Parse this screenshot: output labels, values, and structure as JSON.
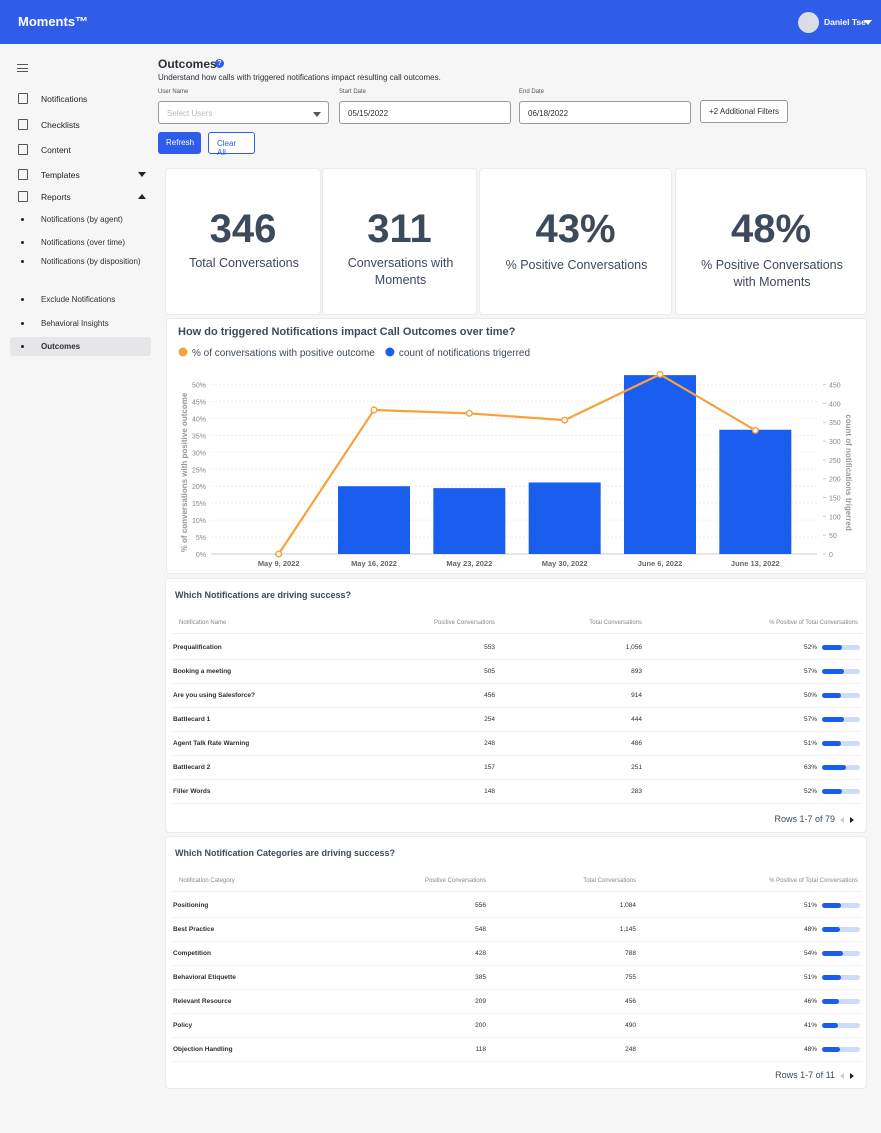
{
  "header": {
    "logo": "Moments™",
    "user": "Daniel Tse"
  },
  "sidebar": {
    "items": [
      "Notifications",
      "Checklists",
      "Content",
      "Templates",
      "Reports"
    ],
    "sub_items": [
      "Notifications (by agent)",
      "Notifications (over time)",
      "Notifications (by disposition)",
      "Exclude Notifications",
      "Behavioral Insights",
      "Outcomes"
    ]
  },
  "page": {
    "title": "Outcomes",
    "subtitle": "Understand how calls with triggered notifications impact resulting call outcomes."
  },
  "filters": {
    "user_label": "User Name",
    "user_placeholder": "Select Users",
    "start_label": "Start Date",
    "start_value": "05/15/2022",
    "end_label": "End Date",
    "end_value": "06/18/2022",
    "more": "+2 Additional Filters",
    "refresh": "Refresh",
    "clear": "Clear All"
  },
  "stats": [
    {
      "value": "346",
      "label": "Total Conversations"
    },
    {
      "value": "311",
      "label": "Conversations with Moments"
    },
    {
      "value": "43%",
      "label": "% Positive Conversations"
    },
    {
      "value": "48%",
      "label": "% Positive Conversations with Moments"
    }
  ],
  "chart_data": {
    "type": "combo",
    "title": "How do triggered Notifications impact Call Outcomes over time?",
    "categories": [
      "May 9, 2022",
      "May 16, 2022",
      "May 23, 2022",
      "May 30, 2022",
      "June 6, 2022",
      "June 13, 2022"
    ],
    "series": [
      {
        "name": "% of conversations with positive outcome",
        "type": "line",
        "color": "#f5a23f",
        "values": [
          0,
          42.5,
          41.5,
          39.5,
          53,
          36.5
        ]
      },
      {
        "name": "count of notifications trigerred",
        "type": "bar",
        "axis": "y2",
        "color": "#1a5ef0",
        "values": [
          0,
          180,
          175,
          190,
          475,
          330
        ]
      }
    ],
    "ylabel": "% of conversations with positive outcome",
    "y2label": "count of notifications trigerred",
    "ylim": [
      0,
      54
    ],
    "yticks": [
      {
        "value": 0,
        "label": "0%"
      },
      {
        "value": 5,
        "label": "5%"
      },
      {
        "value": 10,
        "label": "10%"
      },
      {
        "value": 15,
        "label": "15%"
      },
      {
        "value": 20,
        "label": "20%"
      },
      {
        "value": 25,
        "label": "25%"
      },
      {
        "value": 30,
        "label": "30%"
      },
      {
        "value": 35,
        "label": "35%"
      },
      {
        "value": 40,
        "label": "40%"
      },
      {
        "value": 45,
        "label": "45%"
      },
      {
        "value": 50,
        "label": "50%"
      }
    ],
    "y2lim": [
      0,
      486
    ],
    "y2ticks": [
      0,
      50,
      100,
      150,
      200,
      250,
      300,
      350,
      400,
      450
    ],
    "grid": true,
    "legend": "top-left"
  },
  "tables": [
    {
      "title": "Which Notifications are driving success?",
      "columns": [
        "Notification Name",
        "Positive Conversations",
        "Total Conversations",
        "% Positive of Total Conversations"
      ],
      "rows": [
        {
          "name": "Prequalification",
          "positive": "553",
          "total": "1,056",
          "percent": 52,
          "percent_label": "52%"
        },
        {
          "name": "Booking a meeting",
          "positive": "505",
          "total": "893",
          "percent": 57,
          "percent_label": "57%"
        },
        {
          "name": "Are you using Salesforce?",
          "positive": "456",
          "total": "914",
          "percent": 50,
          "percent_label": "50%"
        },
        {
          "name": "Battlecard 1",
          "positive": "254",
          "total": "444",
          "percent": 57,
          "percent_label": "57%"
        },
        {
          "name": "Agent Talk Rate Warning",
          "positive": "248",
          "total": "486",
          "percent": 51,
          "percent_label": "51%"
        },
        {
          "name": "Battlecard 2",
          "positive": "157",
          "total": "251",
          "percent": 63,
          "percent_label": "63%"
        },
        {
          "name": "Filler Words",
          "positive": "148",
          "total": "283",
          "percent": 52,
          "percent_label": "52%"
        }
      ],
      "pagination": "Rows 1-7 of 79"
    },
    {
      "title": "Which Notification Categories are driving success?",
      "columns": [
        "Notification Category",
        "Positive Conversations",
        "Total Conversations",
        "% Positive of Total Conversations"
      ],
      "rows": [
        {
          "name": "Positioning",
          "positive": "556",
          "total": "1,084",
          "percent": 51,
          "percent_label": "51%"
        },
        {
          "name": "Best Practice",
          "positive": "548",
          "total": "1,145",
          "percent": 48,
          "percent_label": "48%"
        },
        {
          "name": "Competition",
          "positive": "428",
          "total": "788",
          "percent": 54,
          "percent_label": "54%"
        },
        {
          "name": "Behavioral Etiquette",
          "positive": "385",
          "total": "755",
          "percent": 51,
          "percent_label": "51%"
        },
        {
          "name": "Relevant Resource",
          "positive": "209",
          "total": "456",
          "percent": 46,
          "percent_label": "46%"
        },
        {
          "name": "Policy",
          "positive": "200",
          "total": "490",
          "percent": 41,
          "percent_label": "41%"
        },
        {
          "name": "Objection Handling",
          "positive": "118",
          "total": "248",
          "percent": 48,
          "percent_label": "48%"
        }
      ],
      "pagination": "Rows 1-7 of 11"
    }
  ]
}
